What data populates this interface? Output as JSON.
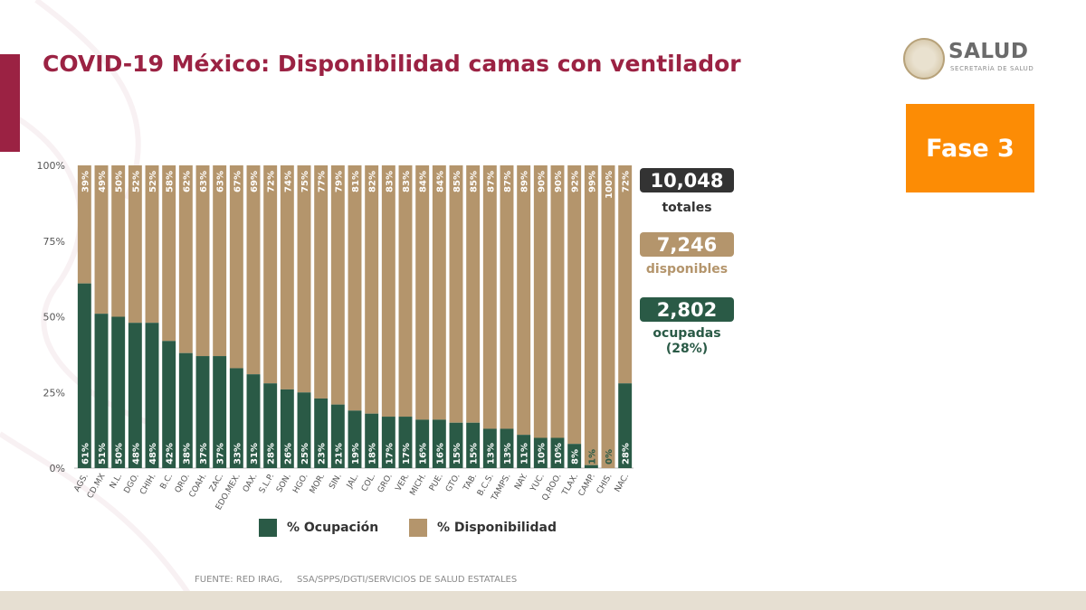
{
  "title": "COVID-19 México: Disponibilidad camas con ventilador",
  "logo": {
    "main": "SALUD",
    "sub": "SECRETARÍA DE SALUD"
  },
  "phase": "Fase 3",
  "stats": {
    "total_value": "10,048",
    "total_label": "totales",
    "available_value": "7,246",
    "available_label": "disponibles",
    "occupied_value": "2,802",
    "occupied_label_1": "ocupadas",
    "occupied_label_2": "(28%)"
  },
  "legend": {
    "occupied": "% Ocupación",
    "available": "% Disponibilidad"
  },
  "source": "FUENTE: RED IRAG,     SSA/SPPS/DGTI/SERVICIOS DE SALUD ESTATALES",
  "colors": {
    "occupied": "#2a5a46",
    "available": "#b4956c",
    "title": "#9b2243",
    "accent": "#9b2243",
    "phase": "#fc8c05",
    "total_box": "#333333"
  },
  "chart_data": {
    "type": "bar",
    "stacked": true,
    "categories": [
      "AGS.",
      "CD.MX",
      "N.L.",
      "DGO.",
      "CHIH.",
      "B.C.",
      "QRO.",
      "COAH.",
      "ZAC.",
      "EDO.MEX.",
      "OAX.",
      "S.L.P.",
      "SON.",
      "HGO.",
      "MOR.",
      "SIN.",
      "JAL.",
      "COL.",
      "GRO.",
      "VER.",
      "MICH.",
      "PUE.",
      "GTO.",
      "TAB.",
      "B.C.S.",
      "TAMPS.",
      "NAY.",
      "YUC.",
      "Q.ROO.",
      "TLAX.",
      "CAMP.",
      "CHIS.",
      "NAC."
    ],
    "series": [
      {
        "name": "% Ocupación",
        "values": [
          61,
          51,
          50,
          48,
          48,
          42,
          38,
          37,
          37,
          33,
          31,
          28,
          26,
          25,
          23,
          21,
          19,
          18,
          17,
          17,
          16,
          16,
          15,
          15,
          13,
          13,
          11,
          10,
          10,
          8,
          1,
          0,
          28
        ]
      },
      {
        "name": "% Disponibilidad",
        "values": [
          39,
          49,
          50,
          52,
          52,
          58,
          62,
          63,
          63,
          67,
          69,
          72,
          74,
          75,
          77,
          79,
          81,
          82,
          83,
          83,
          84,
          84,
          85,
          85,
          87,
          87,
          89,
          90,
          90,
          92,
          99,
          100,
          72
        ]
      }
    ],
    "yticks": [
      "0%",
      "25%",
      "50%",
      "75%",
      "100%"
    ],
    "ylim": [
      0,
      100
    ],
    "grid": false,
    "legend_position": "bottom"
  }
}
